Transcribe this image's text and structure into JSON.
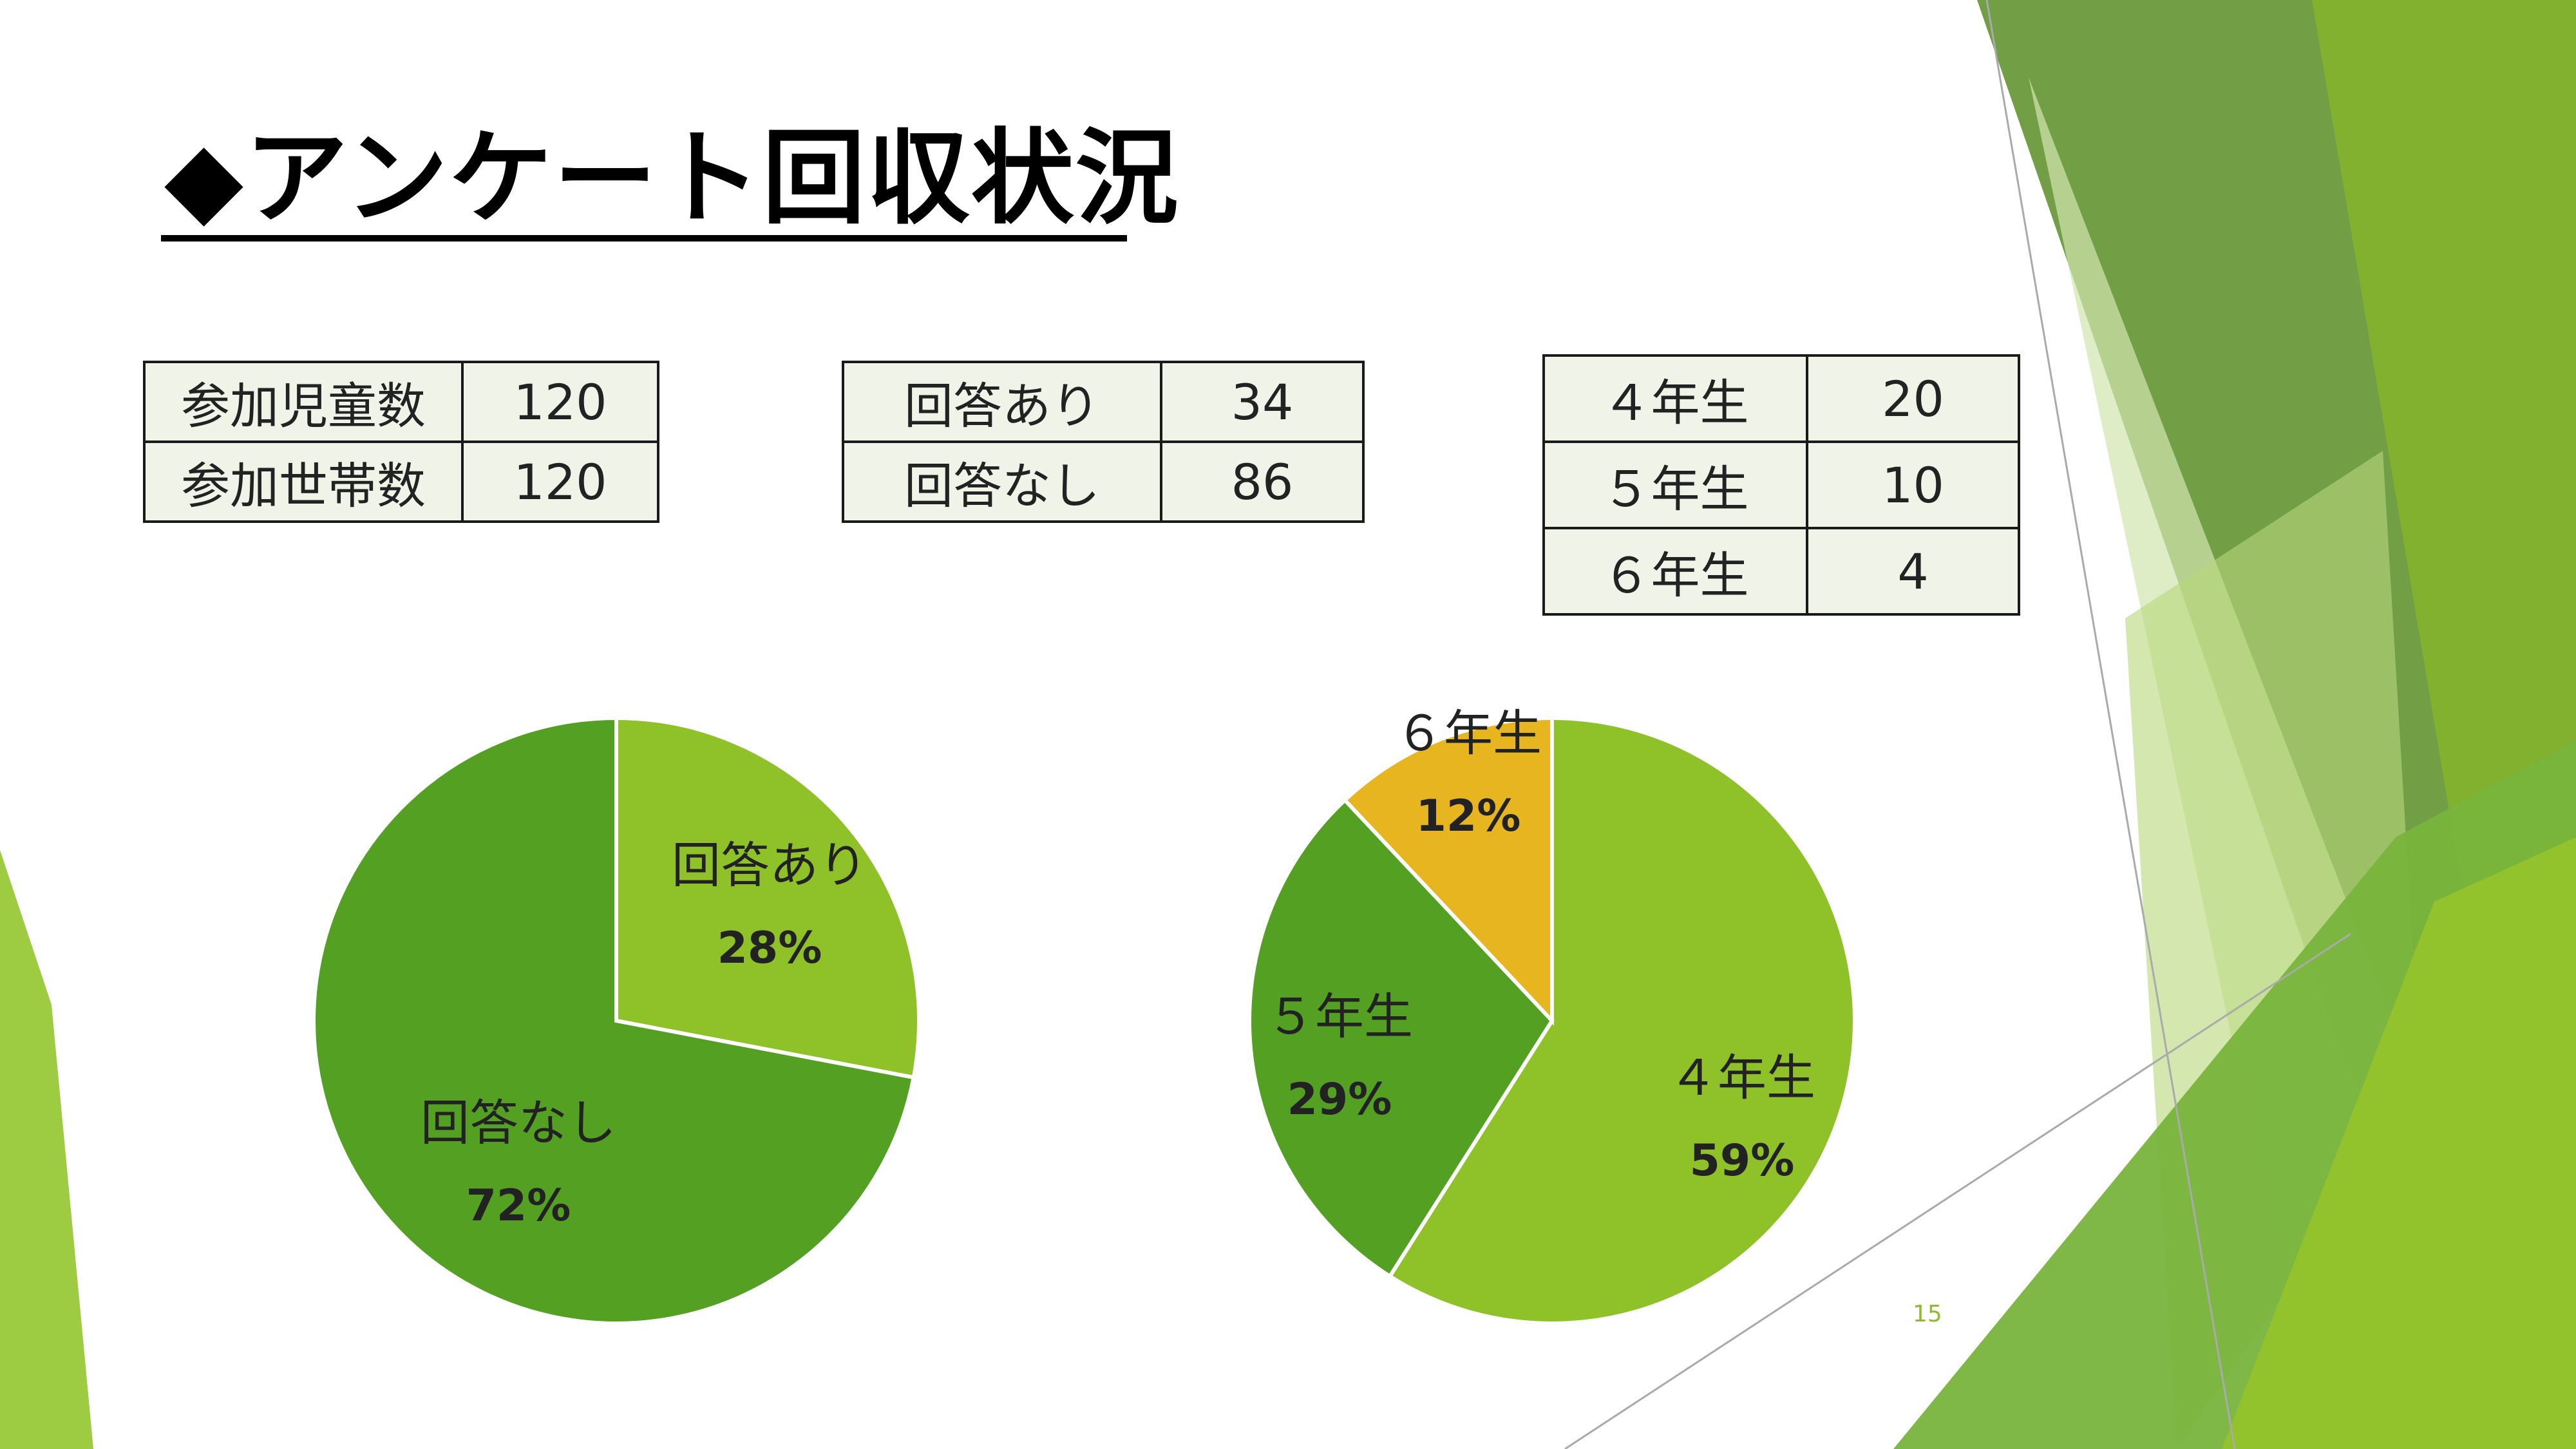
{
  "title": "◆アンケート回収状況",
  "page_number": "15",
  "colors": {
    "light_green": "#8fc128",
    "dark_green": "#54a022",
    "amber": "#e6b51f",
    "table_bg": "#eff3e8"
  },
  "table_participants": {
    "rows": [
      {
        "label": "参加児童数",
        "value": "120"
      },
      {
        "label": "参加世帯数",
        "value": "120"
      }
    ]
  },
  "table_responses": {
    "rows": [
      {
        "label": "回答あり",
        "value": "34"
      },
      {
        "label": "回答なし",
        "value": "86"
      }
    ]
  },
  "table_grades": {
    "rows": [
      {
        "label": "４年生",
        "value": "20"
      },
      {
        "label": "５年生",
        "value": "10"
      },
      {
        "label": "６年生",
        "value": "4"
      }
    ]
  },
  "chart_data": [
    {
      "type": "pie",
      "slices": [
        {
          "label": "回答あり",
          "value": 28,
          "display": "28%",
          "color": "#8fc128"
        },
        {
          "label": "回答なし",
          "value": 72,
          "display": "72%",
          "color": "#54a022"
        }
      ]
    },
    {
      "type": "pie",
      "slices": [
        {
          "label": "４年生",
          "value": 59,
          "display": "59%",
          "color": "#8fc128"
        },
        {
          "label": "５年生",
          "value": 29,
          "display": "29%",
          "color": "#54a022"
        },
        {
          "label": "６年生",
          "value": 12,
          "display": "12%",
          "color": "#e6b51f"
        }
      ]
    }
  ]
}
